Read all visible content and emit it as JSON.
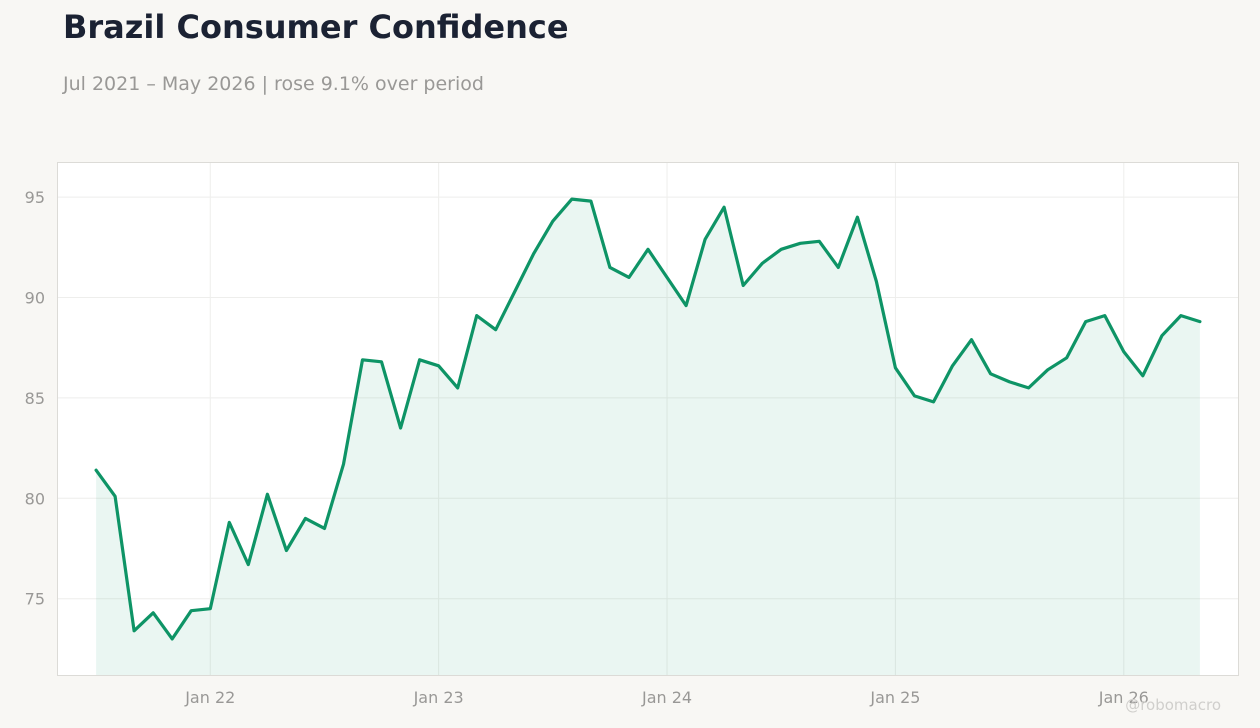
{
  "header": {
    "title": "Brazil Consumer Confidence",
    "subtitle": "Jul 2021 – May 2026 | rose 9.1% over period"
  },
  "watermark": "@robomacro",
  "colors": {
    "background": "#f8f7f4",
    "plot_background": "#ffffff",
    "line": "#0e9466",
    "area_fill": "#0e9466",
    "grid": "#eeeeec",
    "tick_text": "#999896",
    "title": "#1b2233"
  },
  "chart_data": {
    "type": "area",
    "title": "Brazil Consumer Confidence",
    "subtitle": "Jul 2021 – May 2026 | rose 9.1% over period",
    "xlabel": "",
    "ylabel": "",
    "x_ticks": [
      "Jan 22",
      "Jan 23",
      "Jan 24",
      "Jan 25",
      "Jan 26"
    ],
    "y_ticks": [
      75,
      80,
      85,
      90,
      95
    ],
    "ylim": [
      71.2,
      96.7
    ],
    "xlim": [
      "2021-05",
      "2026-07"
    ],
    "grid": true,
    "legend": "none",
    "series": [
      {
        "x": [
          "2021-07",
          "2021-08",
          "2021-09",
          "2021-10",
          "2021-11",
          "2021-12",
          "2022-01",
          "2022-02",
          "2022-03",
          "2022-04",
          "2022-05",
          "2022-06",
          "2022-07",
          "2022-08",
          "2022-09",
          "2022-10",
          "2022-11",
          "2022-12",
          "2023-01",
          "2023-02",
          "2023-03",
          "2023-04",
          "2023-05",
          "2023-06",
          "2023-07",
          "2023-08",
          "2023-09",
          "2023-10",
          "2023-11",
          "2023-12",
          "2024-01",
          "2024-02",
          "2024-03",
          "2024-04",
          "2024-05",
          "2024-06",
          "2024-07",
          "2024-08",
          "2024-09",
          "2024-10",
          "2024-11",
          "2024-12",
          "2025-01",
          "2025-02",
          "2025-03",
          "2025-04",
          "2025-05",
          "2025-06",
          "2025-07",
          "2025-08",
          "2025-09",
          "2025-10",
          "2025-11",
          "2025-12",
          "2026-01",
          "2026-02",
          "2026-03",
          "2026-04",
          "2026-05"
        ],
        "values": [
          81.4,
          80.1,
          73.4,
          74.3,
          73.0,
          74.4,
          74.5,
          78.8,
          76.7,
          80.2,
          77.4,
          79.0,
          78.5,
          81.7,
          86.9,
          86.8,
          83.5,
          86.9,
          86.6,
          85.5,
          89.1,
          88.4,
          90.3,
          92.2,
          93.8,
          94.9,
          94.8,
          91.5,
          91.0,
          92.4,
          91.0,
          89.6,
          92.9,
          94.5,
          90.6,
          91.7,
          92.4,
          92.7,
          92.8,
          91.5,
          94.0,
          90.8,
          86.5,
          85.1,
          84.8,
          86.6,
          87.9,
          86.2,
          85.8,
          85.5,
          86.4,
          87.0,
          88.8,
          89.1,
          87.3,
          86.1,
          88.1,
          89.1,
          88.8
        ]
      }
    ]
  }
}
